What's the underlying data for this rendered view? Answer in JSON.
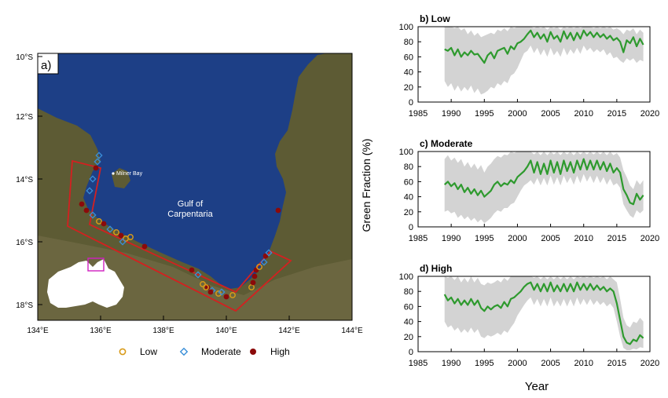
{
  "map": {
    "panel_label": "a)",
    "water_label_line1": "Gulf of",
    "water_label_line2": "Carpentaria",
    "place_label": "Milner Bay",
    "lat_ticks": [
      "10°S",
      "12°S",
      "14°S",
      "16°S",
      "18°S"
    ],
    "lon_ticks": [
      "134°E",
      "136°E",
      "138°E",
      "140°E",
      "142°E",
      "144°E"
    ],
    "legend": [
      {
        "label": "Low",
        "marker": "open-circle",
        "color": "#d89a18"
      },
      {
        "label": "Moderate",
        "marker": "open-diamond",
        "color": "#3a8fd8"
      },
      {
        "label": "High",
        "marker": "filled-circle",
        "color": "#8b0a0a"
      }
    ],
    "colors": {
      "water": "#1d3f86",
      "land": "#5a5a32",
      "region_outline": "#d42020",
      "inset_box": "#d020c0"
    }
  },
  "shared_ylabel": "Green Fraction (%)",
  "shared_xlabel": "Year",
  "chart_data": [
    {
      "type": "line",
      "title": "b) Low",
      "xlim": [
        1985,
        2020
      ],
      "ylim": [
        0,
        100
      ],
      "xticks": [
        1985,
        1990,
        1995,
        2000,
        2005,
        2010,
        2015,
        2020
      ],
      "yticks": [
        0,
        20,
        40,
        60,
        80,
        100
      ],
      "band_color": "#d3d3d3",
      "line_color": "#2e9a2e",
      "x": [
        1989,
        1989.5,
        1990,
        1990.5,
        1991,
        1991.5,
        1992,
        1992.5,
        1993,
        1993.5,
        1994,
        1994.5,
        1995,
        1995.5,
        1996,
        1996.5,
        1997,
        1997.5,
        1998,
        1998.5,
        1999,
        1999.5,
        2000,
        2000.5,
        2001,
        2001.5,
        2002,
        2002.5,
        2003,
        2003.5,
        2004,
        2004.5,
        2005,
        2005.5,
        2006,
        2006.5,
        2007,
        2007.5,
        2008,
        2008.5,
        2009,
        2009.5,
        2010,
        2010.5,
        2011,
        2011.5,
        2012,
        2012.5,
        2013,
        2013.5,
        2014,
        2014.5,
        2015,
        2015.5,
        2016,
        2016.5,
        2017,
        2017.5,
        2018,
        2018.5,
        2019
      ],
      "y": [
        70,
        68,
        72,
        62,
        70,
        60,
        66,
        62,
        68,
        63,
        64,
        58,
        52,
        62,
        66,
        58,
        68,
        70,
        72,
        64,
        74,
        70,
        78,
        80,
        84,
        90,
        95,
        86,
        92,
        84,
        90,
        80,
        93,
        84,
        88,
        80,
        94,
        84,
        92,
        82,
        92,
        84,
        95,
        88,
        93,
        86,
        92,
        86,
        90,
        84,
        88,
        82,
        85,
        80,
        66,
        82,
        78,
        86,
        74,
        84,
        76
      ],
      "lower": [
        28,
        20,
        25,
        15,
        22,
        14,
        20,
        15,
        22,
        12,
        18,
        10,
        12,
        15,
        20,
        18,
        25,
        22,
        28,
        25,
        35,
        38,
        45,
        55,
        65,
        68,
        75,
        65,
        72,
        62,
        70,
        60,
        72,
        62,
        68,
        60,
        72,
        62,
        70,
        64,
        72,
        64,
        75,
        68,
        72,
        66,
        70,
        66,
        70,
        62,
        66,
        58,
        60,
        55,
        52,
        58,
        55,
        58,
        52,
        56,
        54
      ],
      "upper": [
        100,
        100,
        100,
        98,
        100,
        95,
        98,
        90,
        95,
        88,
        92,
        86,
        88,
        90,
        92,
        90,
        96,
        94,
        98,
        94,
        100,
        98,
        100,
        100,
        100,
        100,
        100,
        98,
        100,
        98,
        100,
        96,
        100,
        98,
        100,
        96,
        100,
        98,
        100,
        98,
        100,
        98,
        100,
        100,
        100,
        98,
        100,
        98,
        100,
        98,
        100,
        96,
        98,
        95,
        90,
        96,
        94,
        98,
        90,
        96,
        92
      ]
    },
    {
      "type": "line",
      "title": "c) Moderate",
      "xlim": [
        1985,
        2020
      ],
      "ylim": [
        0,
        100
      ],
      "xticks": [
        1985,
        1990,
        1995,
        2000,
        2005,
        2010,
        2015,
        2020
      ],
      "yticks": [
        0,
        20,
        40,
        60,
        80,
        100
      ],
      "band_color": "#d3d3d3",
      "line_color": "#2e9a2e",
      "x": [
        1989,
        1989.5,
        1990,
        1990.5,
        1991,
        1991.5,
        1992,
        1992.5,
        1993,
        1993.5,
        1994,
        1994.5,
        1995,
        1995.5,
        1996,
        1996.5,
        1997,
        1997.5,
        1998,
        1998.5,
        1999,
        1999.5,
        2000,
        2000.5,
        2001,
        2001.5,
        2002,
        2002.5,
        2003,
        2003.5,
        2004,
        2004.5,
        2005,
        2005.5,
        2006,
        2006.5,
        2007,
        2007.5,
        2008,
        2008.5,
        2009,
        2009.5,
        2010,
        2010.5,
        2011,
        2011.5,
        2012,
        2012.5,
        2013,
        2013.5,
        2014,
        2014.5,
        2015,
        2015.5,
        2016,
        2016.5,
        2017,
        2017.5,
        2018,
        2018.5,
        2019
      ],
      "y": [
        56,
        60,
        54,
        58,
        50,
        56,
        46,
        52,
        44,
        50,
        42,
        48,
        40,
        44,
        48,
        56,
        60,
        54,
        58,
        56,
        62,
        58,
        66,
        70,
        74,
        80,
        88,
        72,
        86,
        70,
        84,
        70,
        88,
        72,
        86,
        70,
        88,
        74,
        86,
        72,
        88,
        76,
        90,
        76,
        88,
        76,
        88,
        76,
        86,
        74,
        84,
        72,
        78,
        72,
        50,
        42,
        32,
        30,
        44,
        36,
        42
      ],
      "lower": [
        20,
        22,
        18,
        20,
        12,
        16,
        10,
        14,
        8,
        12,
        6,
        10,
        5,
        8,
        12,
        18,
        22,
        20,
        25,
        25,
        30,
        32,
        40,
        48,
        55,
        58,
        62,
        56,
        65,
        55,
        65,
        55,
        68,
        56,
        66,
        55,
        68,
        58,
        66,
        56,
        68,
        58,
        70,
        60,
        68,
        58,
        68,
        58,
        66,
        56,
        64,
        55,
        58,
        52,
        30,
        22,
        15,
        12,
        22,
        18,
        22
      ],
      "upper": [
        90,
        95,
        88,
        92,
        85,
        90,
        80,
        86,
        78,
        84,
        76,
        82,
        72,
        80,
        84,
        90,
        94,
        92,
        96,
        95,
        100,
        98,
        100,
        100,
        100,
        100,
        100,
        96,
        100,
        95,
        100,
        95,
        100,
        96,
        100,
        95,
        100,
        96,
        100,
        95,
        100,
        96,
        100,
        96,
        100,
        96,
        100,
        96,
        100,
        95,
        100,
        95,
        98,
        92,
        75,
        66,
        55,
        50,
        62,
        56,
        62
      ]
    },
    {
      "type": "line",
      "title": "d) High",
      "xlim": [
        1985,
        2020
      ],
      "ylim": [
        0,
        100
      ],
      "xticks": [
        1985,
        1990,
        1995,
        2000,
        2005,
        2010,
        2015,
        2020
      ],
      "yticks": [
        0,
        20,
        40,
        60,
        80,
        100
      ],
      "band_color": "#d3d3d3",
      "line_color": "#2e9a2e",
      "x": [
        1989,
        1989.5,
        1990,
        1990.5,
        1991,
        1991.5,
        1992,
        1992.5,
        1993,
        1993.5,
        1994,
        1994.5,
        1995,
        1995.5,
        1996,
        1996.5,
        1997,
        1997.5,
        1998,
        1998.5,
        1999,
        1999.5,
        2000,
        2000.5,
        2001,
        2001.5,
        2002,
        2002.5,
        2003,
        2003.5,
        2004,
        2004.5,
        2005,
        2005.5,
        2006,
        2006.5,
        2007,
        2007.5,
        2008,
        2008.5,
        2009,
        2009.5,
        2010,
        2010.5,
        2011,
        2011.5,
        2012,
        2012.5,
        2013,
        2013.5,
        2014,
        2014.5,
        2015,
        2015.5,
        2016,
        2016.5,
        2017,
        2017.5,
        2018,
        2018.5,
        2019
      ],
      "y": [
        76,
        68,
        72,
        64,
        70,
        62,
        68,
        62,
        70,
        62,
        68,
        58,
        54,
        60,
        56,
        60,
        62,
        58,
        66,
        60,
        70,
        72,
        76,
        80,
        86,
        90,
        92,
        82,
        90,
        80,
        90,
        80,
        92,
        80,
        88,
        80,
        90,
        80,
        90,
        80,
        92,
        82,
        90,
        82,
        90,
        82,
        88,
        82,
        86,
        80,
        84,
        80,
        64,
        42,
        20,
        12,
        10,
        16,
        14,
        22,
        18
      ],
      "lower": [
        40,
        32,
        35,
        28,
        32,
        25,
        30,
        25,
        32,
        25,
        30,
        20,
        18,
        22,
        20,
        22,
        25,
        22,
        28,
        25,
        32,
        38,
        48,
        55,
        62,
        68,
        72,
        62,
        70,
        60,
        70,
        60,
        72,
        60,
        68,
        60,
        70,
        60,
        70,
        60,
        72,
        62,
        70,
        62,
        70,
        62,
        68,
        62,
        66,
        60,
        64,
        58,
        40,
        20,
        5,
        2,
        2,
        4,
        3,
        6,
        5
      ],
      "upper": [
        100,
        98,
        100,
        95,
        100,
        92,
        98,
        92,
        100,
        92,
        98,
        90,
        88,
        92,
        90,
        92,
        95,
        92,
        98,
        94,
        100,
        100,
        100,
        100,
        100,
        100,
        100,
        98,
        100,
        96,
        100,
        96,
        100,
        96,
        100,
        96,
        100,
        96,
        100,
        96,
        100,
        98,
        100,
        98,
        100,
        98,
        100,
        98,
        100,
        96,
        100,
        96,
        92,
        70,
        45,
        35,
        32,
        40,
        38,
        45,
        40
      ]
    }
  ]
}
